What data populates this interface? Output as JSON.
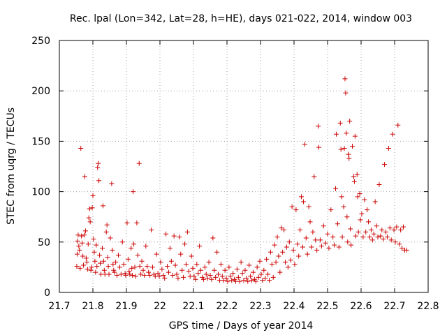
{
  "chart_data": {
    "type": "scatter",
    "title": "Rec. lpal (Lon=342, Lat=28, h=HE), days 021-022, 2014, window 003",
    "xlabel": "GPS time / Days of year 2014",
    "ylabel": "STEC from uqrg / TECUs",
    "xlim": [
      21.7,
      22.8
    ],
    "ylim": [
      0,
      250
    ],
    "x_ticks": [
      "21.7",
      "21.8",
      "21.9",
      "22",
      "22.1",
      "22.2",
      "22.3",
      "22.4",
      "22.5",
      "22.6",
      "22.7",
      "22.8"
    ],
    "y_ticks": [
      "0",
      "50",
      "100",
      "150",
      "200",
      "250"
    ],
    "grid": true,
    "marker": "+",
    "color": "#cc0000",
    "series": [
      {
        "points": [
          [
            21.752,
            26
          ],
          [
            21.753,
            38
          ],
          [
            21.754,
            51
          ],
          [
            21.756,
            57
          ],
          [
            21.758,
            46
          ],
          [
            21.76,
            42
          ],
          [
            21.762,
            24
          ],
          [
            21.764,
            143
          ],
          [
            21.766,
            56
          ],
          [
            21.768,
            49
          ],
          [
            21.77,
            36
          ],
          [
            21.772,
            27
          ],
          [
            21.774,
            57
          ],
          [
            21.776,
            115
          ],
          [
            21.778,
            61
          ],
          [
            21.78,
            34
          ],
          [
            21.782,
            30
          ],
          [
            21.784,
            23
          ],
          [
            21.786,
            48
          ],
          [
            21.788,
            74
          ],
          [
            21.79,
            83
          ],
          [
            21.792,
            70
          ],
          [
            21.794,
            22
          ],
          [
            21.796,
            25
          ],
          [
            21.798,
            84
          ],
          [
            21.8,
            96
          ],
          [
            21.802,
            53
          ],
          [
            21.804,
            40
          ],
          [
            21.806,
            31
          ],
          [
            21.808,
            20
          ],
          [
            21.81,
            47
          ],
          [
            21.812,
            26
          ],
          [
            21.814,
            124
          ],
          [
            21.816,
            128
          ],
          [
            21.818,
            111
          ],
          [
            21.82,
            37
          ],
          [
            21.822,
            29
          ],
          [
            21.824,
            18
          ],
          [
            21.828,
            44
          ],
          [
            21.83,
            86
          ],
          [
            21.832,
            31
          ],
          [
            21.834,
            22
          ],
          [
            21.836,
            18
          ],
          [
            21.84,
            60
          ],
          [
            21.842,
            67
          ],
          [
            21.844,
            35
          ],
          [
            21.846,
            26
          ],
          [
            21.848,
            18
          ],
          [
            21.852,
            54
          ],
          [
            21.856,
            108
          ],
          [
            21.858,
            42
          ],
          [
            21.86,
            28
          ],
          [
            21.862,
            22
          ],
          [
            21.864,
            20
          ],
          [
            21.868,
            30
          ],
          [
            21.872,
            17
          ],
          [
            21.876,
            37
          ],
          [
            21.88,
            25
          ],
          [
            21.884,
            18
          ],
          [
            21.888,
            50
          ],
          [
            21.892,
            28
          ],
          [
            21.896,
            19
          ],
          [
            21.898,
            17
          ],
          [
            21.902,
            69
          ],
          [
            21.905,
            33
          ],
          [
            21.908,
            21
          ],
          [
            21.91,
            18
          ],
          [
            21.914,
            44
          ],
          [
            21.916,
            24
          ],
          [
            21.918,
            17
          ],
          [
            21.92,
            100
          ],
          [
            21.922,
            48
          ],
          [
            21.925,
            25
          ],
          [
            21.928,
            16
          ],
          [
            21.931,
            69
          ],
          [
            21.934,
            37
          ],
          [
            21.938,
            128
          ],
          [
            21.94,
            26
          ],
          [
            21.943,
            18
          ],
          [
            21.946,
            31
          ],
          [
            21.95,
            22
          ],
          [
            21.954,
            17
          ],
          [
            21.958,
            46
          ],
          [
            21.962,
            26
          ],
          [
            21.966,
            20
          ],
          [
            21.97,
            17
          ],
          [
            21.974,
            62
          ],
          [
            21.978,
            25
          ],
          [
            21.982,
            18
          ],
          [
            21.986,
            16
          ],
          [
            21.99,
            38
          ],
          [
            21.994,
            19
          ],
          [
            21.998,
            16
          ],
          [
            22.002,
            30
          ],
          [
            22.006,
            23
          ],
          [
            22.01,
            17
          ],
          [
            22.014,
            14
          ],
          [
            22.018,
            58
          ],
          [
            22.022,
            26
          ],
          [
            22.026,
            20
          ],
          [
            22.03,
            44
          ],
          [
            22.034,
            31
          ],
          [
            22.038,
            17
          ],
          [
            22.042,
            56
          ],
          [
            22.046,
            27
          ],
          [
            22.05,
            18
          ],
          [
            22.054,
            14
          ],
          [
            22.058,
            55
          ],
          [
            22.062,
            38
          ],
          [
            22.066,
            22
          ],
          [
            22.07,
            15
          ],
          [
            22.074,
            48
          ],
          [
            22.078,
            28
          ],
          [
            22.082,
            60
          ],
          [
            22.086,
            21
          ],
          [
            22.09,
            16
          ],
          [
            22.094,
            36
          ],
          [
            22.098,
            24
          ],
          [
            22.102,
            16
          ],
          [
            22.106,
            13
          ],
          [
            22.11,
            28
          ],
          [
            22.114,
            19
          ],
          [
            22.118,
            46
          ],
          [
            22.122,
            22
          ],
          [
            22.126,
            15
          ],
          [
            22.13,
            13
          ],
          [
            22.134,
            25
          ],
          [
            22.138,
            18
          ],
          [
            22.142,
            14
          ],
          [
            22.146,
            30
          ],
          [
            22.15,
            17
          ],
          [
            22.154,
            13
          ],
          [
            22.158,
            54
          ],
          [
            22.162,
            22
          ],
          [
            22.166,
            15
          ],
          [
            22.17,
            40
          ],
          [
            22.174,
            18
          ],
          [
            22.178,
            12
          ],
          [
            22.182,
            28
          ],
          [
            22.186,
            16
          ],
          [
            22.19,
            12
          ],
          [
            22.194,
            22
          ],
          [
            22.198,
            14
          ],
          [
            22.202,
            11
          ],
          [
            22.206,
            25
          ],
          [
            22.21,
            16
          ],
          [
            22.214,
            12
          ],
          [
            22.218,
            19
          ],
          [
            22.222,
            13
          ],
          [
            22.226,
            11
          ],
          [
            22.23,
            23
          ],
          [
            22.234,
            15
          ],
          [
            22.238,
            11
          ],
          [
            22.242,
            30
          ],
          [
            22.246,
            19
          ],
          [
            22.25,
            12
          ],
          [
            22.254,
            22
          ],
          [
            22.258,
            14
          ],
          [
            22.262,
            11
          ],
          [
            22.266,
            27
          ],
          [
            22.27,
            16
          ],
          [
            22.274,
            12
          ],
          [
            22.278,
            20
          ],
          [
            22.282,
            13
          ],
          [
            22.286,
            11
          ],
          [
            22.29,
            25
          ],
          [
            22.294,
            15
          ],
          [
            22.298,
            31
          ],
          [
            22.302,
            18
          ],
          [
            22.306,
            12
          ],
          [
            22.31,
            22
          ],
          [
            22.314,
            14
          ],
          [
            22.318,
            33
          ],
          [
            22.322,
            18
          ],
          [
            22.326,
            12
          ],
          [
            22.33,
            40
          ],
          [
            22.334,
            28
          ],
          [
            22.338,
            15
          ],
          [
            22.342,
            47
          ],
          [
            22.346,
            30
          ],
          [
            22.35,
            55
          ],
          [
            22.354,
            36
          ],
          [
            22.358,
            20
          ],
          [
            22.362,
            64
          ],
          [
            22.366,
            40
          ],
          [
            22.37,
            62
          ],
          [
            22.374,
            30
          ],
          [
            22.378,
            45
          ],
          [
            22.382,
            25
          ],
          [
            22.386,
            50
          ],
          [
            22.39,
            32
          ],
          [
            22.394,
            85
          ],
          [
            22.398,
            42
          ],
          [
            22.402,
            28
          ],
          [
            22.406,
            82
          ],
          [
            22.41,
            48
          ],
          [
            22.414,
            36
          ],
          [
            22.418,
            62
          ],
          [
            22.422,
            95
          ],
          [
            22.426,
            45
          ],
          [
            22.428,
            90
          ],
          [
            22.432,
            147
          ],
          [
            22.436,
            54
          ],
          [
            22.44,
            38
          ],
          [
            22.444,
            85
          ],
          [
            22.448,
            70
          ],
          [
            22.452,
            45
          ],
          [
            22.456,
            60
          ],
          [
            22.46,
            115
          ],
          [
            22.464,
            52
          ],
          [
            22.468,
            42
          ],
          [
            22.472,
            165
          ],
          [
            22.474,
            144
          ],
          [
            22.478,
            52
          ],
          [
            22.482,
            46
          ],
          [
            22.488,
            66
          ],
          [
            22.494,
            49
          ],
          [
            22.5,
            58
          ],
          [
            22.504,
            44
          ],
          [
            22.51,
            82
          ],
          [
            22.516,
            55
          ],
          [
            22.52,
            47
          ],
          [
            22.524,
            103
          ],
          [
            22.526,
            157
          ],
          [
            22.53,
            68
          ],
          [
            22.534,
            45
          ],
          [
            22.538,
            168
          ],
          [
            22.54,
            142
          ],
          [
            22.542,
            95
          ],
          [
            22.544,
            55
          ],
          [
            22.548,
            85
          ],
          [
            22.55,
            143
          ],
          [
            22.552,
            212
          ],
          [
            22.554,
            198
          ],
          [
            22.556,
            158
          ],
          [
            22.558,
            75
          ],
          [
            22.56,
            50
          ],
          [
            22.562,
            137
          ],
          [
            22.564,
            133
          ],
          [
            22.566,
            170
          ],
          [
            22.568,
            63
          ],
          [
            22.57,
            47
          ],
          [
            22.574,
            145
          ],
          [
            22.578,
            115
          ],
          [
            22.58,
            110
          ],
          [
            22.582,
            155
          ],
          [
            22.584,
            56
          ],
          [
            22.588,
            117
          ],
          [
            22.59,
            95
          ],
          [
            22.592,
            60
          ],
          [
            22.596,
            98
          ],
          [
            22.598,
            72
          ],
          [
            22.602,
            78
          ],
          [
            22.606,
            55
          ],
          [
            22.61,
            92
          ],
          [
            22.614,
            60
          ],
          [
            22.618,
            82
          ],
          [
            22.622,
            70
          ],
          [
            22.626,
            55
          ],
          [
            22.63,
            62
          ],
          [
            22.634,
            52
          ],
          [
            22.638,
            58
          ],
          [
            22.642,
            90
          ],
          [
            22.646,
            66
          ],
          [
            22.65,
            55
          ],
          [
            22.654,
            107
          ],
          [
            22.658,
            56
          ],
          [
            22.662,
            62
          ],
          [
            22.666,
            53
          ],
          [
            22.67,
            127
          ],
          [
            22.674,
            60
          ],
          [
            22.678,
            55
          ],
          [
            22.682,
            143
          ],
          [
            22.686,
            64
          ],
          [
            22.69,
            52
          ],
          [
            22.694,
            157
          ],
          [
            22.698,
            62
          ],
          [
            22.702,
            50
          ],
          [
            22.706,
            65
          ],
          [
            22.71,
            166
          ],
          [
            22.714,
            48
          ],
          [
            22.718,
            62
          ],
          [
            22.722,
            44
          ],
          [
            22.726,
            65
          ],
          [
            22.73,
            42
          ],
          [
            22.736,
            42
          ]
        ]
      }
    ]
  }
}
